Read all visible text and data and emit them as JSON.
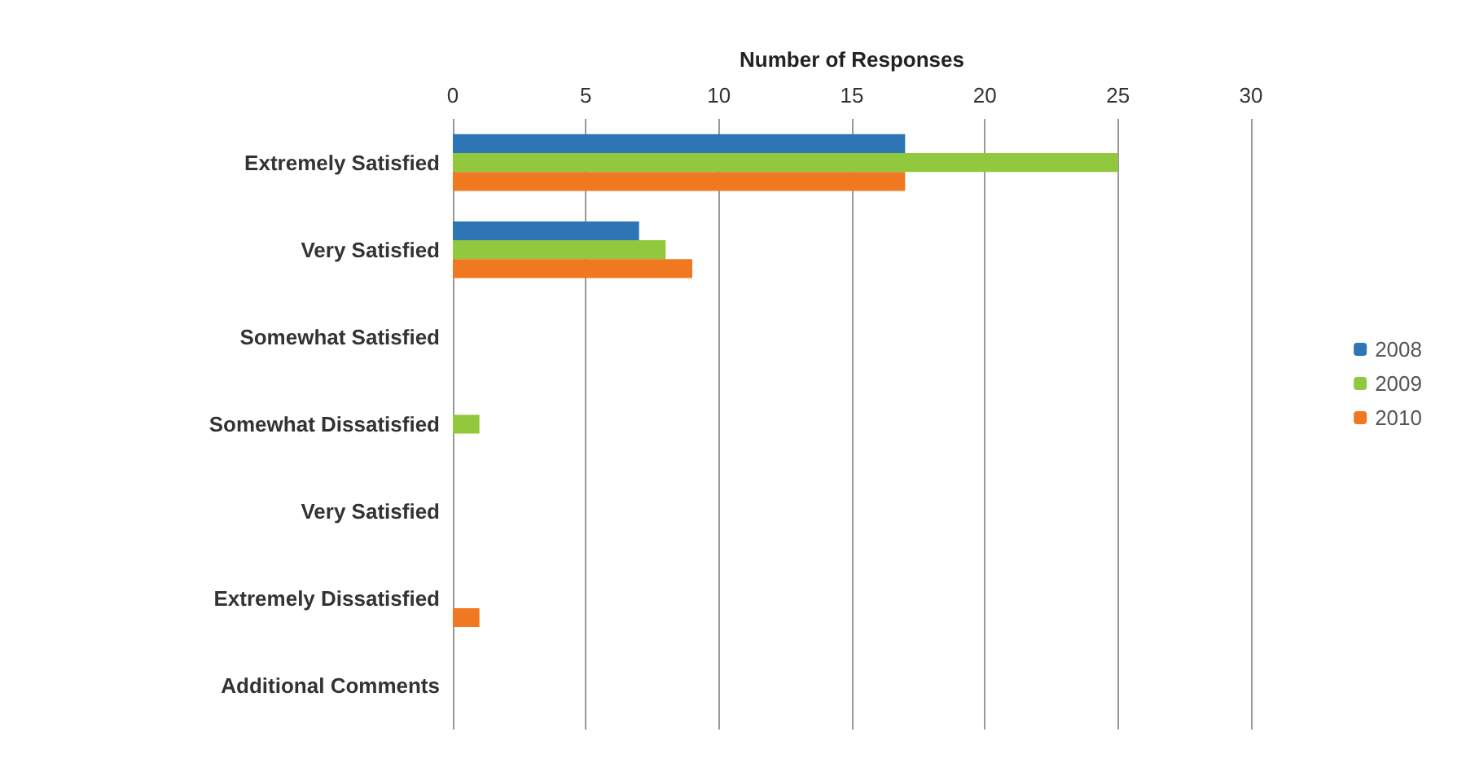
{
  "chart_data": {
    "type": "bar",
    "orientation": "horizontal",
    "xlabel": "Number of Responses",
    "categories": [
      "Extremely Satisfied",
      "Very Satisfied",
      "Somewhat Satisfied",
      "Somewhat Dissatisfied",
      "Very Satisfied",
      "Extremely Dissatisfied",
      "Additional Comments"
    ],
    "series": [
      {
        "name": "2008",
        "color": "#2e75b6",
        "values": [
          17,
          7,
          0,
          0,
          0,
          0,
          0
        ]
      },
      {
        "name": "2009",
        "color": "#92c83e",
        "values": [
          25,
          8,
          0,
          1,
          0,
          0,
          0
        ]
      },
      {
        "name": "2010",
        "color": "#f07820",
        "values": [
          17,
          9,
          0,
          0,
          0,
          1,
          0
        ]
      }
    ],
    "xlim": [
      0,
      30
    ],
    "xticks": [
      0,
      5,
      10,
      15,
      20,
      25,
      30
    ],
    "grid": "x",
    "legend": "right"
  }
}
